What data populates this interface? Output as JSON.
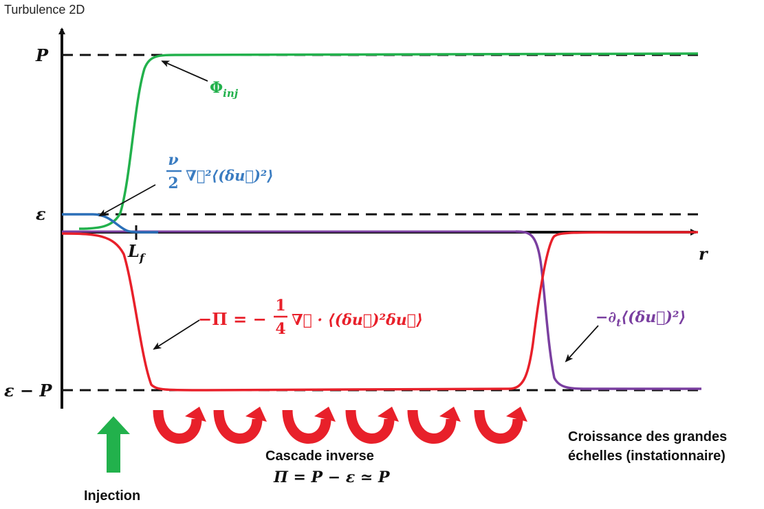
{
  "title": "Turbulence 2D",
  "axes": {
    "y_tick_P": "P",
    "y_tick_eps": "ε",
    "y_tick_eps_minus_P": "ε − P",
    "x_tick_Lf": "L",
    "x_tick_Lf_sub": "f",
    "x_label": "r"
  },
  "curves": {
    "injection": {
      "label": "Φ",
      "label_sub": "inj",
      "color": "#22b14c"
    },
    "dissipation": {
      "label_num": "ν",
      "label_den": "2",
      "label_rest": "∇⃗²⟨(δu⃗)²⟩",
      "color": "#3a7cc1"
    },
    "flux": {
      "label_prefix": "−Π = −",
      "label_num": "1",
      "label_den": "4",
      "label_rest": "∇⃗ · ⟨(δu⃗)²δu⃗⟩",
      "color": "#e8202a"
    },
    "unsteady": {
      "label": "−∂",
      "label_sub": "t",
      "label_rest": "⟨(δu⃗)²⟩",
      "color": "#7a3fa0"
    }
  },
  "annotations": {
    "injection": "Injection",
    "cascade_title": "Cascade inverse",
    "cascade_formula": "Π = P − ε ≃ P",
    "growth_line1": "Croissance des grandes",
    "growth_line2": "échelles (instationnaire)"
  },
  "colors": {
    "axis": "#111111",
    "injection_arrow": "#22b14c",
    "cascade_arrows": "#e8202a"
  },
  "icons": {
    "injection_arrow": "up-arrow-icon",
    "cascade_arrows": "u-turn-arrow-icon"
  }
}
